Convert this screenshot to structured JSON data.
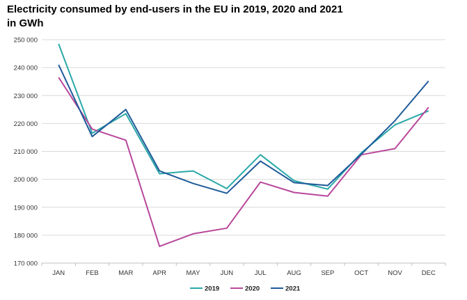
{
  "chart_data": {
    "type": "line",
    "title_line1": "Electricity consumed by end-users in the EU in 2019, 2020 and 2021",
    "title_line2": "in GWh",
    "xlabel": "",
    "ylabel": "",
    "categories": [
      "JAN",
      "FEB",
      "MAR",
      "APR",
      "MAY",
      "JUN",
      "JUL",
      "AUG",
      "SEP",
      "OCT",
      "NOV",
      "DEC"
    ],
    "ylim": [
      170000,
      250000
    ],
    "yticks": [
      170000,
      180000,
      190000,
      200000,
      210000,
      220000,
      230000,
      240000,
      250000
    ],
    "ytick_labels": [
      "170 000",
      "180 000",
      "190 000",
      "200 000",
      "210 000",
      "220 000",
      "230 000",
      "240 000",
      "250 000"
    ],
    "grid": true,
    "legend_position": "bottom-center",
    "series": [
      {
        "name": "2019",
        "color": "#2aa8a8",
        "values": [
          248500,
          216500,
          223500,
          202000,
          203000,
          196700,
          208800,
          199500,
          196500,
          209500,
          219500,
          224500
        ]
      },
      {
        "name": "2020",
        "color": "#b8479b",
        "values": [
          236500,
          218000,
          214000,
          176000,
          180500,
          182500,
          199000,
          195300,
          194000,
          208800,
          211000,
          225800
        ]
      },
      {
        "name": "2021",
        "color": "#1f5a99",
        "values": [
          241000,
          215300,
          225000,
          203000,
          198500,
          195000,
          206500,
          198800,
          197800,
          209000,
          221000,
          235200
        ]
      }
    ]
  }
}
